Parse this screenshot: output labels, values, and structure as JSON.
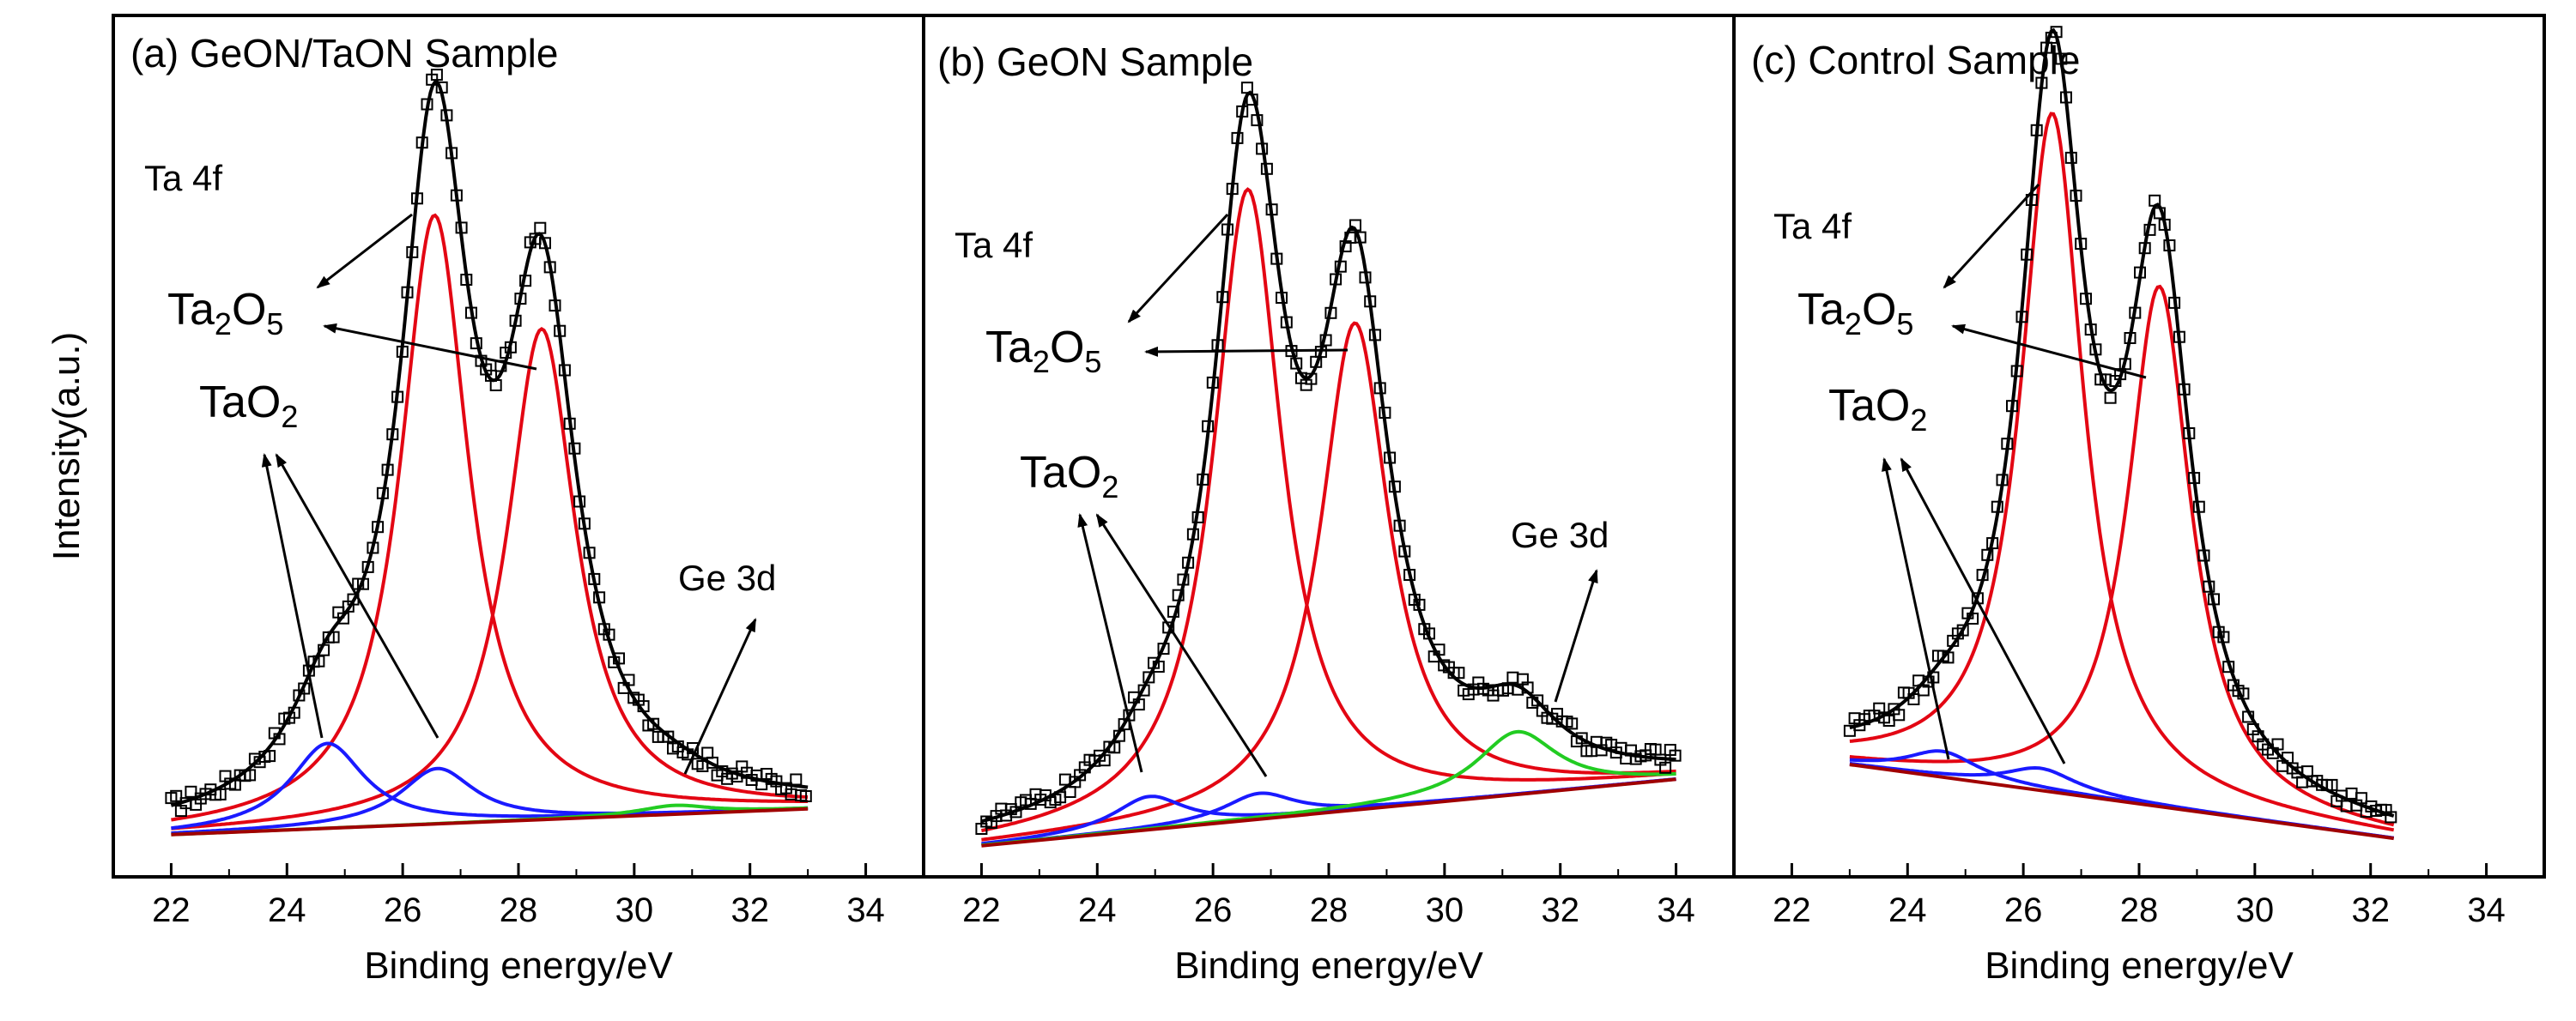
{
  "chart_data": {
    "type": "line",
    "shared_ylabel": "Intensity(a.u.)",
    "colors": {
      "data_markers": "#000000",
      "envelope": "#000000",
      "ta2o5": "#e30613",
      "tao2": "#1a1aff",
      "ge3d": "#22cc22",
      "background": "#a00000"
    },
    "panels": [
      {
        "id": "a",
        "title": "(a) GeON/TaON Sample",
        "xlabel": "Binding energy/eV",
        "xlim": [
          21,
          35
        ],
        "xticks": [
          "22",
          "24",
          "26",
          "28",
          "30",
          "32",
          "34"
        ],
        "ylim": [
          0,
          100
        ],
        "data_range": [
          22,
          33
        ],
        "region_label": "Ta 4f",
        "baseline": {
          "start": 2,
          "end": 5.5
        },
        "peaks": [
          {
            "species": "Ta2O5",
            "center": 26.55,
            "height": 82.5,
            "width": 0.72
          },
          {
            "species": "Ta2O5",
            "center": 28.4,
            "height": 66.5,
            "width": 0.72
          },
          {
            "species": "TaO2",
            "center": 24.7,
            "height": 11.5,
            "width": 0.78
          },
          {
            "species": "TaO2",
            "center": 26.6,
            "height": 7.5,
            "width": 0.78
          },
          {
            "species": "Ge3d",
            "center": 30.7,
            "height": 1.2,
            "width": 0.75
          }
        ],
        "labels": {
          "ta2o5_main": "Ta",
          "ta2o5_sub1": "2",
          "ta2o5_mid": "O",
          "ta2o5_sub2": "5",
          "tao2_main": "TaO",
          "tao2_sub": "2",
          "ge": "Ge 3d"
        }
      },
      {
        "id": "b",
        "title": "(b) GeON Sample",
        "xlabel": "Binding energy/eV",
        "xlim": [
          21,
          35
        ],
        "xticks": [
          "22",
          "24",
          "26",
          "28",
          "30",
          "32",
          "34"
        ],
        "ylim": [
          0,
          100
        ],
        "data_range": [
          22,
          34
        ],
        "region_label": "Ta 4f",
        "baseline": {
          "start": 0.5,
          "end": 9.5
        },
        "peaks": [
          {
            "species": "Ta2O5",
            "center": 26.6,
            "height": 85.5,
            "width": 0.72
          },
          {
            "species": "Ta2O5",
            "center": 28.45,
            "height": 66,
            "width": 0.72
          },
          {
            "species": "TaO2",
            "center": 24.9,
            "height": 4.5,
            "width": 0.75
          },
          {
            "species": "TaO2",
            "center": 26.8,
            "height": 3.5,
            "width": 0.75
          },
          {
            "species": "Ge3d",
            "center": 31.25,
            "height": 8.5,
            "width": 0.85
          }
        ],
        "labels": {
          "ta2o5_main": "Ta",
          "ta2o5_sub1": "2",
          "ta2o5_mid": "O",
          "ta2o5_sub2": "5",
          "tao2_main": "TaO",
          "tao2_sub": "2",
          "ge": "Ge 3d"
        }
      },
      {
        "id": "c",
        "title": "(c) Control Sample",
        "xlabel": "Binding energy/eV",
        "xlim": [
          21,
          35
        ],
        "xticks": [
          "22",
          "24",
          "26",
          "28",
          "30",
          "32",
          "34"
        ],
        "ylim": [
          0,
          100
        ],
        "data_range": [
          23,
          32.4
        ],
        "region_label": "Ta 4f",
        "baseline": {
          "start": 11.5,
          "end": 1.5
        },
        "peaks": [
          {
            "species": "Ta2O5",
            "center": 26.5,
            "height": 92,
            "width": 0.66
          },
          {
            "species": "Ta2O5",
            "center": 28.35,
            "height": 70.5,
            "width": 0.66
          },
          {
            "species": "TaO2",
            "center": 24.6,
            "height": 3.5,
            "width": 0.75
          },
          {
            "species": "TaO2",
            "center": 26.3,
            "height": 3,
            "width": 0.75
          }
        ],
        "labels": {
          "ta2o5_main": "Ta",
          "ta2o5_sub1": "2",
          "ta2o5_mid": "O",
          "ta2o5_sub2": "5",
          "tao2_main": "TaO",
          "tao2_sub": "2"
        }
      }
    ]
  }
}
